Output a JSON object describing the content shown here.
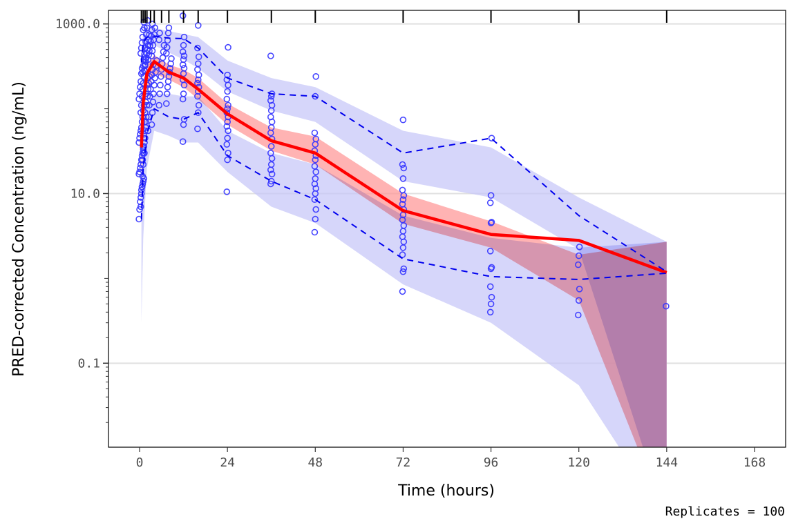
{
  "chart_data": {
    "type": "scatter",
    "title": "",
    "xlabel": "Time (hours)",
    "ylabel": "PRED-corrected Concentration (ng/mL)",
    "caption": "Replicates = 100",
    "xlim": [
      -8.5,
      176.5
    ],
    "ylim_log10": [
      -1.99,
      3.16
    ],
    "y_scale": "log10",
    "x_ticks": [
      0,
      24,
      48,
      72,
      96,
      120,
      144,
      168
    ],
    "x_tick_labels": [
      "0",
      "24",
      "48",
      "72",
      "96",
      "120",
      "144",
      "168"
    ],
    "y_ticks": [
      1000,
      10,
      0.1
    ],
    "y_tick_labels": [
      "1000.0",
      "10.0",
      "0.1"
    ],
    "grid": true,
    "bin_times": [
      0.5,
      1,
      1.5,
      2,
      3,
      4,
      6,
      8,
      12,
      16,
      24,
      36,
      48,
      72,
      96,
      120,
      144
    ],
    "colors": {
      "observed_points": "#3333ff",
      "observed_median": "#ff0000",
      "observed_percentiles": "#0000ee",
      "median_pi": "#ff9999",
      "outer_pi": "#c8c8f8",
      "grid": "#e0e0e0"
    },
    "series": [
      {
        "name": "observed median",
        "style": "solid-red",
        "x": [
          0.5,
          1,
          2,
          4,
          8,
          12,
          16,
          24,
          36,
          48,
          72,
          96,
          120,
          144
        ],
        "y": [
          35,
          120,
          260,
          360,
          270,
          230,
          170,
          87,
          42,
          30,
          6.3,
          3.3,
          2.8,
          1.17
        ]
      },
      {
        "name": "observed 95th percentile",
        "style": "dashed-blue",
        "x": [
          0.5,
          1,
          2,
          4,
          8,
          12,
          16,
          24,
          36,
          48,
          72,
          96,
          120,
          144
        ],
        "y": [
          350,
          600,
          700,
          720,
          680,
          670,
          520,
          230,
          150,
          140,
          30,
          45,
          5.5,
          1.2
        ]
      },
      {
        "name": "observed 5th percentile",
        "style": "dashed-blue",
        "x": [
          0.5,
          1,
          2,
          4,
          8,
          12,
          16,
          24,
          36,
          48,
          72,
          96,
          120,
          144
        ],
        "y": [
          5,
          20,
          50,
          100,
          80,
          75,
          90,
          28,
          14,
          8.5,
          1.7,
          1.05,
          0.97,
          1.15
        ]
      }
    ],
    "bands": [
      {
        "name": "PI of 95th percentile",
        "x": [
          0.5,
          1,
          2,
          4,
          8,
          12,
          16,
          24,
          36,
          48,
          72,
          96,
          120,
          144
        ],
        "lower": [
          150,
          420,
          520,
          560,
          460,
          380,
          300,
          160,
          95,
          70,
          14,
          9,
          2.2,
          0.0014
        ],
        "upper": [
          480,
          820,
          900,
          900,
          820,
          760,
          700,
          370,
          230,
          180,
          55,
          35,
          9,
          2.7
        ]
      },
      {
        "name": "PI of median",
        "x": [
          0.5,
          1,
          2,
          4,
          8,
          12,
          16,
          24,
          36,
          48,
          72,
          96,
          120,
          144
        ],
        "lower": [
          12,
          60,
          160,
          260,
          220,
          180,
          130,
          65,
          32,
          22,
          4.4,
          2.3,
          0.55,
          0.0014
        ],
        "upper": [
          60,
          190,
          330,
          430,
          330,
          290,
          230,
          115,
          60,
          47,
          10,
          4.7,
          1.9,
          2.7
        ]
      },
      {
        "name": "PI of 5th percentile",
        "x": [
          0.5,
          1,
          2,
          4,
          8,
          12,
          16,
          24,
          36,
          48,
          72,
          96,
          120,
          144
        ],
        "lower": [
          0.3,
          3,
          20,
          55,
          48,
          40,
          40,
          18,
          7,
          4.5,
          0.85,
          0.3,
          0.055,
          0.0014
        ],
        "upper": [
          12,
          50,
          110,
          150,
          150,
          140,
          140,
          55,
          30,
          22,
          5.5,
          3,
          2.3,
          2.7
        ]
      }
    ],
    "observed_points": [
      {
        "t": 0.5,
        "values": [
          5,
          6.5,
          8,
          9,
          11,
          12,
          13,
          14,
          15,
          17,
          18,
          20,
          22,
          25,
          28,
          30,
          33,
          36,
          40,
          45,
          50,
          55,
          60,
          70,
          80,
          95,
          110,
          130,
          150,
          180,
          210,
          260,
          300
        ]
      },
      {
        "t": 1,
        "values": [
          7,
          10,
          12,
          16,
          22,
          30,
          40,
          55,
          70,
          90,
          110,
          140,
          170,
          200,
          240,
          280,
          330,
          380,
          450,
          520,
          600,
          700,
          850,
          1050
        ]
      },
      {
        "t": 1.5,
        "values": [
          25,
          35,
          50,
          70,
          90,
          120,
          150,
          190,
          230,
          270,
          320,
          380,
          440,
          520,
          620,
          750,
          900,
          1100
        ]
      },
      {
        "t": 2,
        "values": [
          30,
          45,
          60,
          80,
          110,
          140,
          170,
          200,
          240,
          280,
          320,
          360,
          400,
          450,
          500,
          560,
          650,
          750,
          900
        ]
      },
      {
        "t": 3,
        "values": [
          55,
          80,
          110,
          140,
          170,
          210,
          250,
          290,
          330,
          380,
          430,
          480,
          550,
          620,
          720,
          850,
          1000
        ]
      },
      {
        "t": 4,
        "values": [
          65,
          90,
          120,
          150,
          190,
          230,
          270,
          320,
          370,
          420,
          480,
          560,
          650,
          750,
          900
        ]
      },
      {
        "t": 6,
        "values": [
          110,
          150,
          190,
          240,
          290,
          340,
          400,
          470,
          560,
          650,
          780
        ]
      },
      {
        "t": 8,
        "values": [
          115,
          150,
          180,
          210,
          240,
          270,
          300,
          340,
          390,
          450,
          530,
          640,
          780,
          900
        ]
      },
      {
        "t": 12,
        "values": [
          41,
          65,
          75,
          130,
          150,
          190,
          220,
          260,
          300,
          330,
          380,
          420,
          470,
          560,
          700,
          1250
        ]
      },
      {
        "t": 16,
        "values": [
          58,
          90,
          110,
          140,
          160,
          180,
          200,
          220,
          250,
          290,
          340,
          410,
          520,
          960
        ]
      },
      {
        "t": 24,
        "values": [
          10.5,
          25,
          30,
          38,
          45,
          55,
          62,
          70,
          80,
          90,
          100,
          110,
          130,
          160,
          190,
          220,
          250,
          530
        ]
      },
      {
        "t": 36,
        "values": [
          13,
          14,
          17,
          19,
          22,
          26,
          30,
          36,
          44,
          52,
          60,
          70,
          80,
          95,
          110,
          125,
          140,
          150,
          420
        ]
      },
      {
        "t": 48,
        "values": [
          3.5,
          5,
          6.5,
          8.5,
          10,
          11.5,
          13,
          15,
          18,
          21,
          25,
          28,
          32,
          38,
          44,
          52,
          140,
          240
        ]
      },
      {
        "t": 72,
        "values": [
          0.7,
          1.2,
          1.3,
          1.9,
          2.3,
          2.7,
          3.1,
          3.6,
          4.2,
          4.9,
          5.6,
          6.5,
          7.5,
          8.5,
          9.5,
          11,
          15,
          20,
          22,
          74
        ]
      },
      {
        "t": 96,
        "values": [
          0.4,
          0.5,
          0.6,
          0.8,
          1.3,
          1.35,
          2.1,
          4.5,
          4.6,
          7.8,
          9.5,
          45
        ]
      },
      {
        "t": 120,
        "values": [
          0.37,
          0.55,
          0.75,
          1.45,
          1.85,
          2.35
        ]
      },
      {
        "t": 144,
        "values": [
          0.47
        ]
      }
    ]
  }
}
